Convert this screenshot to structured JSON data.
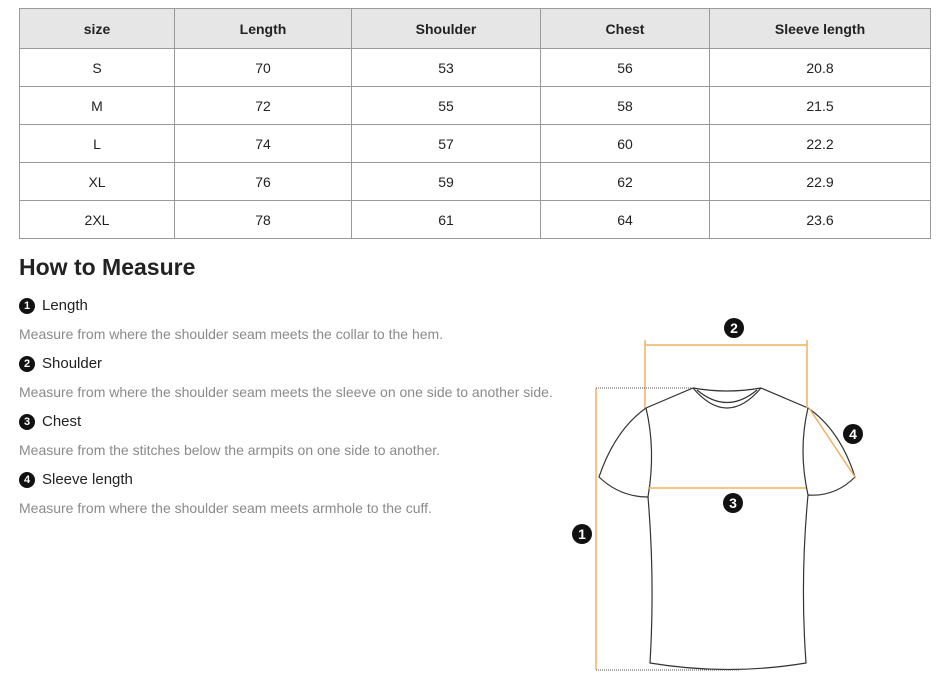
{
  "table": {
    "headers": [
      "size",
      "Length",
      "Shoulder",
      "Chest",
      "Sleeve length"
    ],
    "rows": [
      [
        "S",
        "70",
        "53",
        "56",
        "20.8"
      ],
      [
        "M",
        "72",
        "55",
        "58",
        "21.5"
      ],
      [
        "L",
        "74",
        "57",
        "60",
        "22.2"
      ],
      [
        "XL",
        "76",
        "59",
        "62",
        "22.9"
      ],
      [
        "2XL",
        "78",
        "61",
        "64",
        "23.6"
      ]
    ]
  },
  "how_to": {
    "title": "How to Measure",
    "items": [
      {
        "num": "1",
        "label": "Length",
        "desc": "Measure from where the shoulder seam meets the collar to the hem."
      },
      {
        "num": "2",
        "label": "Shoulder",
        "desc": "Measure from where the shoulder seam meets the sleeve on one side to another side."
      },
      {
        "num": "3",
        "label": "Chest",
        "desc": "Measure from the stitches below the armpits on one side to another."
      },
      {
        "num": "4",
        "label": "Sleeve length",
        "desc": "Measure from where the shoulder seam meets armhole to the cuff."
      }
    ]
  },
  "diagram": {
    "markers": [
      "1",
      "2",
      "3",
      "4"
    ],
    "line_color": "#f0b060"
  }
}
